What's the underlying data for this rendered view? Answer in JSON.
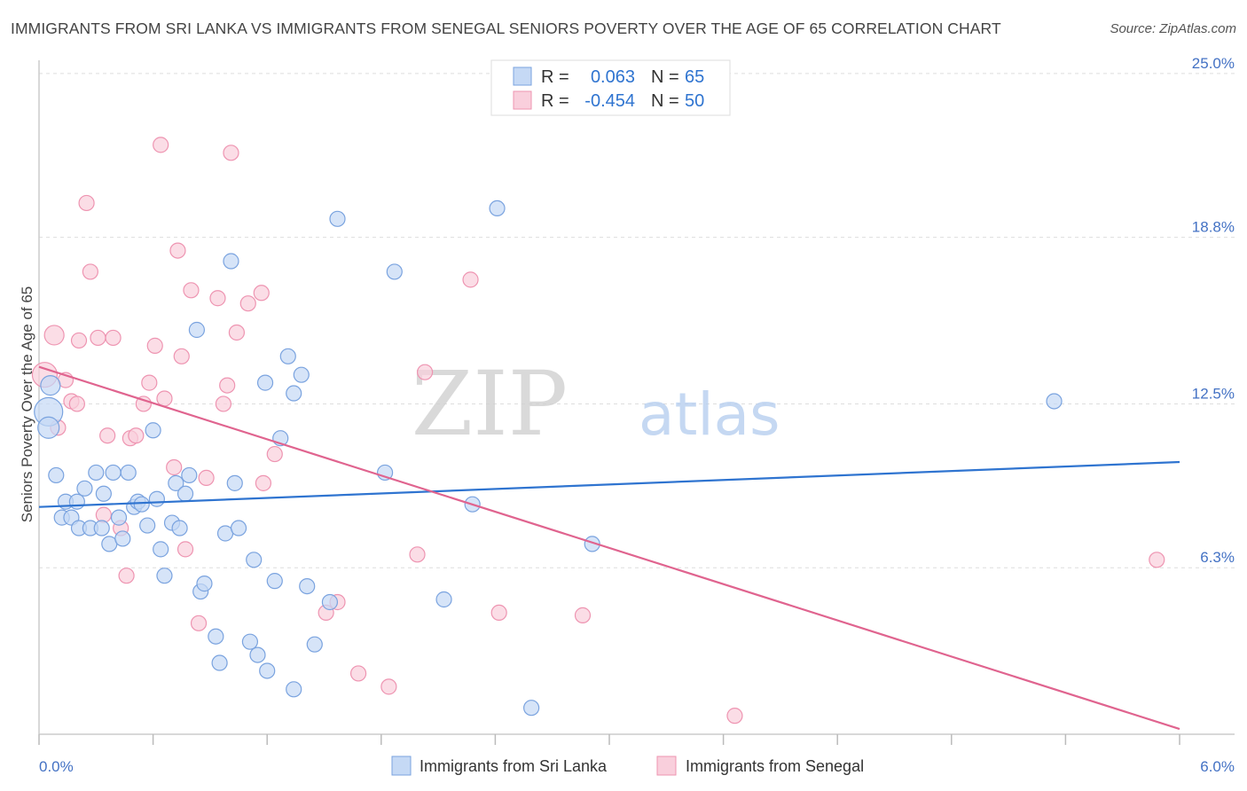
{
  "title": "IMMIGRANTS FROM SRI LANKA VS IMMIGRANTS FROM SENEGAL SENIORS POVERTY OVER THE AGE OF 65 CORRELATION CHART",
  "source": "Source: ZipAtlas.com",
  "watermark": {
    "zip": "ZIP",
    "atlas": "atlas"
  },
  "colors": {
    "sri_lanka_fill": "#c5d9f5",
    "sri_lanka_stroke": "#7aa3df",
    "sri_lanka_line": "#2f74d0",
    "senegal_fill": "#f9cfdc",
    "senegal_stroke": "#ee94b1",
    "senegal_line": "#e0648f",
    "axis_label": "#4472c4",
    "grid": "#dddddd"
  },
  "stats": {
    "r_label": "R =",
    "n_label": "N =",
    "sri_lanka": {
      "r": "0.063",
      "n": "65"
    },
    "senegal": {
      "r": "-0.454",
      "n": "50"
    }
  },
  "chart_data": {
    "type": "scatter",
    "title": "IMMIGRANTS FROM SRI LANKA VS IMMIGRANTS FROM SENEGAL SENIORS POVERTY OVER THE AGE OF 65 CORRELATION CHART",
    "xlabel": "",
    "ylabel": "Seniors Poverty Over the Age of 65",
    "xlim": [
      0,
      6
    ],
    "ylim": [
      0,
      25.5
    ],
    "x_tick_labels": [
      "0.0%",
      "6.0%"
    ],
    "y_ticks": [
      6.3,
      12.5,
      18.8,
      25.0
    ],
    "y_tick_labels": [
      "6.3%",
      "12.5%",
      "18.8%",
      "25.0%"
    ],
    "grid": true,
    "legend_position": "bottom",
    "series": [
      {
        "name": "Immigrants from Sri Lanka",
        "trend": {
          "x": [
            0,
            6
          ],
          "y": [
            8.6,
            10.3
          ]
        },
        "points": [
          {
            "x": 0.05,
            "y": 12.2,
            "s": 16
          },
          {
            "x": 0.06,
            "y": 13.2,
            "s": 11
          },
          {
            "x": 0.05,
            "y": 11.6,
            "s": 12
          },
          {
            "x": 0.09,
            "y": 9.8
          },
          {
            "x": 0.12,
            "y": 8.2
          },
          {
            "x": 0.14,
            "y": 8.8
          },
          {
            "x": 0.17,
            "y": 8.2
          },
          {
            "x": 0.2,
            "y": 8.8
          },
          {
            "x": 0.21,
            "y": 7.8
          },
          {
            "x": 0.24,
            "y": 9.3
          },
          {
            "x": 0.27,
            "y": 7.8
          },
          {
            "x": 0.3,
            "y": 9.9
          },
          {
            "x": 0.33,
            "y": 7.8
          },
          {
            "x": 0.34,
            "y": 9.1
          },
          {
            "x": 0.37,
            "y": 7.2
          },
          {
            "x": 0.39,
            "y": 9.9
          },
          {
            "x": 0.42,
            "y": 8.2
          },
          {
            "x": 0.44,
            "y": 7.4
          },
          {
            "x": 0.47,
            "y": 9.9
          },
          {
            "x": 0.5,
            "y": 8.6
          },
          {
            "x": 0.52,
            "y": 8.8
          },
          {
            "x": 0.54,
            "y": 8.7
          },
          {
            "x": 0.57,
            "y": 7.9
          },
          {
            "x": 0.6,
            "y": 11.5
          },
          {
            "x": 0.62,
            "y": 8.9
          },
          {
            "x": 0.64,
            "y": 7.0
          },
          {
            "x": 0.66,
            "y": 6.0
          },
          {
            "x": 0.7,
            "y": 8.0
          },
          {
            "x": 0.72,
            "y": 9.5
          },
          {
            "x": 0.74,
            "y": 7.8
          },
          {
            "x": 0.77,
            "y": 9.1
          },
          {
            "x": 0.79,
            "y": 9.8
          },
          {
            "x": 0.83,
            "y": 15.3
          },
          {
            "x": 0.85,
            "y": 5.4
          },
          {
            "x": 0.87,
            "y": 5.7
          },
          {
            "x": 0.93,
            "y": 3.7
          },
          {
            "x": 0.95,
            "y": 2.7
          },
          {
            "x": 0.98,
            "y": 7.6
          },
          {
            "x": 1.01,
            "y": 17.9
          },
          {
            "x": 1.03,
            "y": 9.5
          },
          {
            "x": 1.05,
            "y": 7.8
          },
          {
            "x": 1.11,
            "y": 3.5
          },
          {
            "x": 1.13,
            "y": 6.6
          },
          {
            "x": 1.15,
            "y": 3.0
          },
          {
            "x": 1.19,
            "y": 13.3
          },
          {
            "x": 1.2,
            "y": 2.4
          },
          {
            "x": 1.24,
            "y": 5.8
          },
          {
            "x": 1.27,
            "y": 11.2
          },
          {
            "x": 1.31,
            "y": 14.3
          },
          {
            "x": 1.34,
            "y": 12.9
          },
          {
            "x": 1.34,
            "y": 1.7
          },
          {
            "x": 1.38,
            "y": 13.6
          },
          {
            "x": 1.41,
            "y": 5.6
          },
          {
            "x": 1.45,
            "y": 3.4
          },
          {
            "x": 1.53,
            "y": 5.0
          },
          {
            "x": 1.57,
            "y": 19.5
          },
          {
            "x": 1.82,
            "y": 9.9
          },
          {
            "x": 1.87,
            "y": 17.5
          },
          {
            "x": 2.13,
            "y": 5.1
          },
          {
            "x": 2.28,
            "y": 8.7
          },
          {
            "x": 2.41,
            "y": 19.9
          },
          {
            "x": 2.59,
            "y": 1.0
          },
          {
            "x": 2.91,
            "y": 7.2
          },
          {
            "x": 5.34,
            "y": 12.6
          }
        ]
      },
      {
        "name": "Immigrants from Senegal",
        "trend": {
          "x": [
            0,
            6
          ],
          "y": [
            13.9,
            0.2
          ]
        },
        "points": [
          {
            "x": 0.03,
            "y": 13.6,
            "s": 14
          },
          {
            "x": 0.08,
            "y": 15.1,
            "s": 11
          },
          {
            "x": 0.1,
            "y": 11.6
          },
          {
            "x": 0.14,
            "y": 13.4
          },
          {
            "x": 0.17,
            "y": 12.6
          },
          {
            "x": 0.2,
            "y": 12.5
          },
          {
            "x": 0.21,
            "y": 14.9
          },
          {
            "x": 0.25,
            "y": 20.1
          },
          {
            "x": 0.27,
            "y": 17.5
          },
          {
            "x": 0.31,
            "y": 15.0
          },
          {
            "x": 0.34,
            "y": 8.3
          },
          {
            "x": 0.36,
            "y": 11.3
          },
          {
            "x": 0.39,
            "y": 15.0
          },
          {
            "x": 0.43,
            "y": 7.8
          },
          {
            "x": 0.46,
            "y": 6.0
          },
          {
            "x": 0.48,
            "y": 11.2
          },
          {
            "x": 0.51,
            "y": 11.3
          },
          {
            "x": 0.55,
            "y": 12.5
          },
          {
            "x": 0.58,
            "y": 13.3
          },
          {
            "x": 0.61,
            "y": 14.7
          },
          {
            "x": 0.64,
            "y": 22.3
          },
          {
            "x": 0.66,
            "y": 12.7
          },
          {
            "x": 0.71,
            "y": 10.1
          },
          {
            "x": 0.73,
            "y": 18.3
          },
          {
            "x": 0.75,
            "y": 14.3
          },
          {
            "x": 0.77,
            "y": 7.0
          },
          {
            "x": 0.8,
            "y": 16.8
          },
          {
            "x": 0.84,
            "y": 4.2
          },
          {
            "x": 0.88,
            "y": 9.7
          },
          {
            "x": 0.94,
            "y": 16.5
          },
          {
            "x": 0.97,
            "y": 12.5
          },
          {
            "x": 0.99,
            "y": 13.2
          },
          {
            "x": 1.01,
            "y": 22.0
          },
          {
            "x": 1.04,
            "y": 15.2
          },
          {
            "x": 1.1,
            "y": 16.3
          },
          {
            "x": 1.17,
            "y": 16.7
          },
          {
            "x": 1.18,
            "y": 9.5
          },
          {
            "x": 1.24,
            "y": 10.6
          },
          {
            "x": 1.51,
            "y": 4.6
          },
          {
            "x": 1.57,
            "y": 5.0
          },
          {
            "x": 1.68,
            "y": 2.3
          },
          {
            "x": 1.84,
            "y": 1.8
          },
          {
            "x": 1.99,
            "y": 6.8
          },
          {
            "x": 2.03,
            "y": 13.7
          },
          {
            "x": 2.27,
            "y": 17.2
          },
          {
            "x": 2.42,
            "y": 4.6
          },
          {
            "x": 2.86,
            "y": 4.5
          },
          {
            "x": 3.66,
            "y": 0.7
          },
          {
            "x": 5.88,
            "y": 6.6
          }
        ]
      }
    ]
  }
}
